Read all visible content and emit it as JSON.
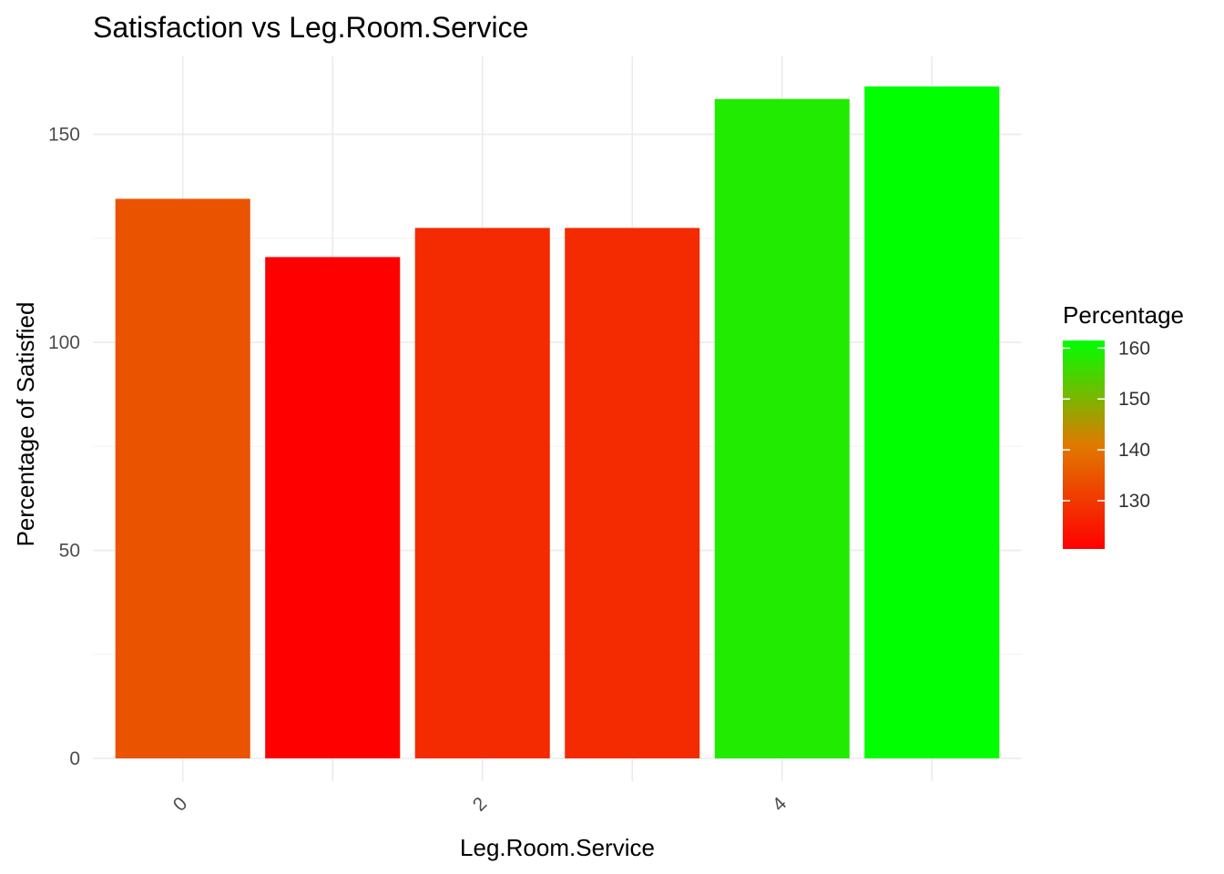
{
  "chart_data": {
    "type": "bar",
    "title": "Satisfaction vs Leg.Room.Service",
    "xlabel": "Leg.Room.Service",
    "ylabel": "Percentage of Satisfied",
    "x": [
      0,
      1,
      2,
      3,
      4,
      5
    ],
    "values": [
      134.5,
      120.5,
      127.5,
      127.5,
      158.5,
      161.5
    ],
    "x_ticks": [
      "0",
      "2",
      "4"
    ],
    "x_tick_values": [
      0,
      2,
      4
    ],
    "xlim": [
      -0.6,
      5.6
    ],
    "y_ticks": [
      "0",
      "50",
      "100",
      "150"
    ],
    "y_tick_values": [
      0,
      50,
      100,
      150
    ],
    "ylim": [
      0,
      165
    ],
    "grid": true,
    "fill_scale": {
      "low_color": "#FF0000",
      "high_color": "#00FF00",
      "min": 120.5,
      "max": 161.5
    },
    "legend": {
      "title": "Percentage",
      "position": "right",
      "ticks": [
        "130",
        "140",
        "150",
        "160"
      ],
      "tick_values": [
        130,
        140,
        150,
        160
      ]
    }
  }
}
